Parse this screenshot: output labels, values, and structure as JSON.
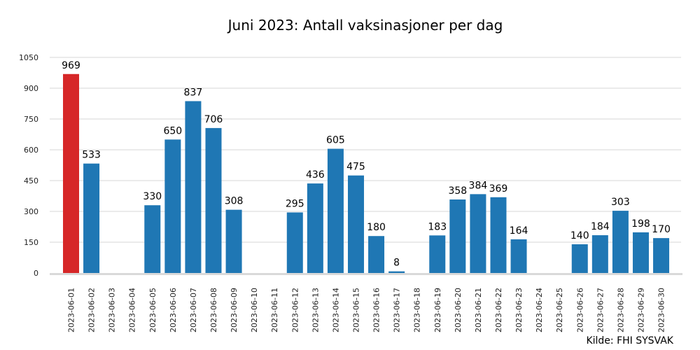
{
  "chart_data": {
    "type": "bar",
    "title": "Juni 2023: Antall vaksinasjoner per dag",
    "source": "Kilde: FHI SYSVAK",
    "xlabel": "",
    "ylabel": "",
    "ylim": [
      0,
      1050
    ],
    "yticks": [
      0,
      150,
      300,
      450,
      600,
      750,
      900,
      1050
    ],
    "grid": true,
    "colors": {
      "default": "#1f77b4",
      "highlight": "#d62728",
      "grid": "#ebebeb",
      "baseline": "#d9d9d9"
    },
    "highlight_index": 0,
    "categories": [
      "2023-06-01",
      "2023-06-02",
      "2023-06-03",
      "2023-06-04",
      "2023-06-05",
      "2023-06-06",
      "2023-06-07",
      "2023-06-08",
      "2023-06-09",
      "2023-06-10",
      "2023-06-11",
      "2023-06-12",
      "2023-06-13",
      "2023-06-14",
      "2023-06-15",
      "2023-06-16",
      "2023-06-17",
      "2023-06-18",
      "2023-06-19",
      "2023-06-20",
      "2023-06-21",
      "2023-06-22",
      "2023-06-23",
      "2023-06-24",
      "2023-06-25",
      "2023-06-26",
      "2023-06-27",
      "2023-06-28",
      "2023-06-29",
      "2023-06-30"
    ],
    "values": [
      969,
      533,
      0,
      0,
      330,
      650,
      837,
      706,
      308,
      0,
      0,
      295,
      436,
      605,
      475,
      180,
      8,
      0,
      183,
      358,
      384,
      369,
      164,
      0,
      0,
      140,
      184,
      303,
      198,
      170
    ]
  }
}
